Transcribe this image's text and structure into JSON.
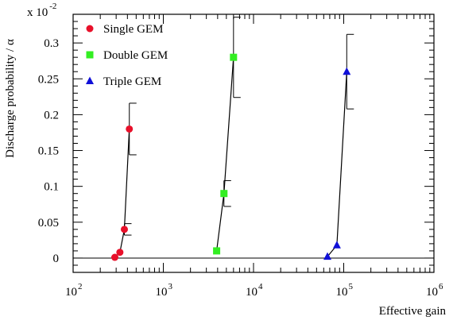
{
  "chart_data": {
    "type": "scatter",
    "xlabel": "Effective gain",
    "ylabel": "Discharge probability / α",
    "x_scale": "log",
    "xlim": [
      100,
      1000000
    ],
    "ylim": [
      -0.02,
      0.34
    ],
    "y_multiplier": "x 10",
    "y_multiplier_exp": "-2",
    "x_tick_base": "10",
    "x_ticks": [
      {
        "value": 100,
        "exp": "2"
      },
      {
        "value": 1000,
        "exp": "3"
      },
      {
        "value": 10000,
        "exp": "4"
      },
      {
        "value": 100000,
        "exp": "5"
      },
      {
        "value": 1000000,
        "exp": "6"
      }
    ],
    "y_ticks": [
      {
        "value": 0,
        "label": "0"
      },
      {
        "value": 0.05,
        "label": "0.05"
      },
      {
        "value": 0.1,
        "label": "0.1"
      },
      {
        "value": 0.15,
        "label": "0.15"
      },
      {
        "value": 0.2,
        "label": "0.2"
      },
      {
        "value": 0.25,
        "label": "0.25"
      },
      {
        "value": 0.3,
        "label": "0.3"
      }
    ],
    "legend_position": "top-left",
    "series": [
      {
        "name": "Single GEM",
        "marker": "circle",
        "color": "#e8102a",
        "points": [
          {
            "x": 290,
            "y": 0.001,
            "err": 0
          },
          {
            "x": 330,
            "y": 0.008,
            "err": 0
          },
          {
            "x": 370,
            "y": 0.04,
            "err": 0.008
          },
          {
            "x": 420,
            "y": 0.18,
            "err": 0.036
          }
        ]
      },
      {
        "name": "Double GEM",
        "marker": "square",
        "color": "#33ee22",
        "points": [
          {
            "x": 3900,
            "y": 0.01,
            "err": 0
          },
          {
            "x": 4700,
            "y": 0.09,
            "err": 0.018
          },
          {
            "x": 6000,
            "y": 0.28,
            "err": 0.056
          }
        ]
      },
      {
        "name": "Triple GEM",
        "marker": "triangle",
        "color": "#1010d8",
        "points": [
          {
            "x": 66000,
            "y": 0.002,
            "err": 0
          },
          {
            "x": 84000,
            "y": 0.018,
            "err": 0
          },
          {
            "x": 108000,
            "y": 0.26,
            "err": 0.052
          }
        ]
      }
    ]
  }
}
